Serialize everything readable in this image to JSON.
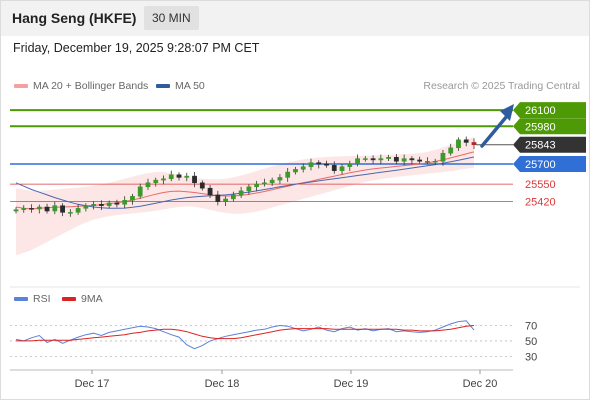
{
  "header": {
    "title": "Hang Seng (HKFE)",
    "timeframe": "30 MIN"
  },
  "datetime": "Friday, December 19, 2025 9:28:07 PM CET",
  "legend": {
    "ma20_label": "MA 20 + Bollinger Bands",
    "ma50_label": "MA 50",
    "source": "Research © 2025 Trading Central"
  },
  "rsi_legend": {
    "rsi_label": "RSI",
    "ma_label": "9MA"
  },
  "colors": {
    "resistance": "#4e9a06",
    "support": "#2f6fd6",
    "current": "#333333",
    "target_line": "#d93a3a",
    "ma20": "#e86a6a",
    "ma50": "#4a68b0",
    "bb_fill": "#fde2e2",
    "candle": "#3a9a2a",
    "candle_down": "#c02020",
    "arrow": "#2e5d9e",
    "rsi": "#5a82d8",
    "rsi_ma": "#dd2222"
  },
  "chart_data": [
    {
      "type": "line",
      "subtype": "candlestick",
      "title": "",
      "xlabel": "",
      "ylabel": "",
      "x_ticks": [
        "Dec 17",
        "Dec 18",
        "Dec 19",
        "Dec 20"
      ],
      "ylim": [
        24800,
        26250
      ],
      "current_price": 25843,
      "levels": [
        {
          "value": 26100,
          "label": "26100",
          "kind": "resistance"
        },
        {
          "value": 25980,
          "label": "25980",
          "kind": "resistance"
        },
        {
          "value": 25843,
          "label": "25843",
          "kind": "current"
        },
        {
          "value": 25700,
          "label": "25700",
          "kind": "support"
        },
        {
          "value": 25550,
          "label": "25550",
          "kind": "target"
        },
        {
          "value": 25420,
          "label": "25420",
          "kind": "target"
        }
      ],
      "series": [
        {
          "name": "MA 20",
          "values": [
            25380,
            25370,
            25365,
            25370,
            25375,
            25378,
            25380,
            25382,
            25385,
            25388,
            25392,
            25398,
            25405,
            25412,
            25420,
            25432,
            25445,
            25460,
            25475,
            25488,
            25496,
            25498,
            25494,
            25488,
            25480,
            25472,
            25465,
            25462,
            25462,
            25466,
            25474,
            25484,
            25495,
            25508,
            25522,
            25535,
            25548,
            25560,
            25572,
            25585,
            25598,
            25610,
            25622,
            25634,
            25645,
            25655,
            25663,
            25670,
            25676,
            25682,
            25688,
            25694,
            25700,
            25708,
            25718,
            25730,
            25745,
            25760,
            25775,
            25790
          ]
        },
        {
          "name": "MA 50",
          "values": [
            25560,
            25535,
            25510,
            25490,
            25470,
            25450,
            25432,
            25415,
            25400,
            25390,
            25380,
            25374,
            25370,
            25370,
            25372,
            25378,
            25386,
            25396,
            25408,
            25420,
            25432,
            25442,
            25450,
            25455,
            25460,
            25463,
            25466,
            25470,
            25476,
            25483,
            25491,
            25500,
            25510,
            25520,
            25530,
            25540,
            25550,
            25558,
            25566,
            25574,
            25582,
            25590,
            25598,
            25606,
            25614,
            25622,
            25630,
            25638,
            25646,
            25654,
            25662,
            25670,
            25678,
            25686,
            25695,
            25705,
            25716,
            25728,
            25740,
            25752
          ]
        },
        {
          "name": "BB upper",
          "values": [
            25520,
            25510,
            25500,
            25500,
            25505,
            25510,
            25515,
            25520,
            25525,
            25530,
            25538,
            25548,
            25560,
            25575,
            25590,
            25605,
            25620,
            25632,
            25640,
            25640,
            25630,
            25618,
            25605,
            25595,
            25590,
            25585,
            25585,
            25590,
            25600,
            25614,
            25630,
            25648,
            25665,
            25682,
            25698,
            25712,
            25724,
            25734,
            25742,
            25748,
            25752,
            25755,
            25757,
            25758,
            25760,
            25762,
            25764,
            25766,
            25768,
            25770,
            25772,
            25775,
            25780,
            25790,
            25805,
            25822,
            25842,
            25862,
            25882,
            25900
          ]
        },
        {
          "name": "BB lower",
          "values": [
            25020,
            25040,
            25060,
            25090,
            25120,
            25150,
            25180,
            25210,
            25240,
            25265,
            25285,
            25300,
            25312,
            25320,
            25326,
            25332,
            25338,
            25344,
            25352,
            25362,
            25372,
            25380,
            25384,
            25382,
            25372,
            25360,
            25346,
            25336,
            25330,
            25330,
            25336,
            25346,
            25360,
            25376,
            25392,
            25408,
            25424,
            25440,
            25456,
            25472,
            25488,
            25504,
            25520,
            25536,
            25552,
            25566,
            25578,
            25588,
            25596,
            25603,
            25610,
            25616,
            25622,
            25628,
            25634,
            25640,
            25648,
            25656,
            25664,
            25672
          ]
        },
        {
          "name": "Close",
          "values": [
            25360,
            25370,
            25365,
            25380,
            25350,
            25390,
            25340,
            25340,
            25370,
            25390,
            25400,
            25390,
            25410,
            25400,
            25430,
            25460,
            25530,
            25560,
            25580,
            25590,
            25620,
            25600,
            25610,
            25560,
            25520,
            25470,
            25420,
            25440,
            25470,
            25500,
            25530,
            25550,
            25560,
            25580,
            25600,
            25640,
            25660,
            25680,
            25710,
            25700,
            25690,
            25650,
            25680,
            25700,
            25740,
            25740,
            25730,
            25740,
            25750,
            25720,
            25740,
            25730,
            25720,
            25720,
            25720,
            25780,
            25820,
            25880,
            25860,
            25843
          ]
        }
      ]
    },
    {
      "type": "line",
      "title": "",
      "ylim": [
        15,
        90
      ],
      "y_ticks": [
        70,
        50,
        30
      ],
      "series": [
        {
          "name": "RSI",
          "values": [
            52,
            50,
            54,
            57,
            48,
            52,
            47,
            51,
            55,
            58,
            60,
            57,
            61,
            63,
            65,
            67,
            69,
            68,
            66,
            62,
            58,
            55,
            45,
            40,
            44,
            50,
            53,
            56,
            58,
            60,
            62,
            64,
            65,
            68,
            70,
            69,
            66,
            63,
            65,
            68,
            64,
            62,
            66,
            68,
            64,
            66,
            63,
            65,
            66,
            62,
            63,
            62,
            61,
            62,
            64,
            68,
            72,
            75,
            76,
            64
          ]
        },
        {
          "name": "9MA",
          "values": [
            50,
            50,
            50,
            51,
            51,
            51,
            51,
            51,
            52,
            53,
            54,
            55,
            56,
            57,
            58,
            60,
            61,
            63,
            64,
            65,
            65,
            64,
            62,
            59,
            56,
            54,
            53,
            53,
            53,
            54,
            56,
            58,
            60,
            62,
            64,
            65,
            66,
            66,
            66,
            66,
            66,
            65,
            65,
            65,
            65,
            65,
            65,
            65,
            65,
            65,
            64,
            64,
            63,
            63,
            63,
            64,
            65,
            67,
            69,
            70
          ]
        }
      ]
    }
  ]
}
